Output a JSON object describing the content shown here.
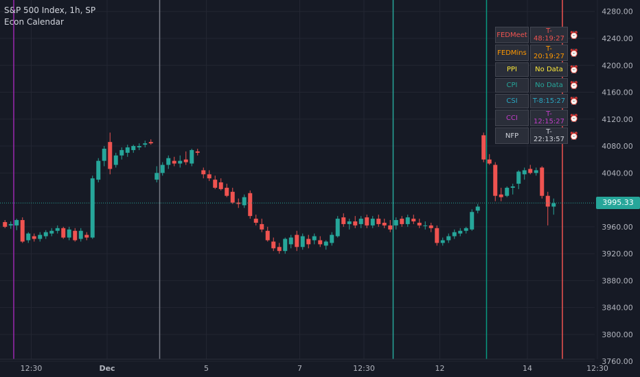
{
  "header": {
    "title": "S&P 500 Index, 1h, SP",
    "indicator": "Econ Calendar"
  },
  "price_badge": "3995.33",
  "colors": {
    "background": "#161a25",
    "up": "#26a69a",
    "down": "#ef5350",
    "grid": "#232632",
    "axis_text": "#b2b5be"
  },
  "calendar": {
    "rows": [
      {
        "event": "FEDMeet",
        "countdown": "T-48:19:27",
        "color": "#ef5350",
        "icon": "alarm-clock"
      },
      {
        "event": "FEDMins",
        "countdown": "T-20:19:27",
        "color": "#ff9800",
        "icon": "alarm-clock"
      },
      {
        "event": "PPI",
        "countdown": "No Data",
        "color": "#ffeb3b",
        "icon": "alarm-clock"
      },
      {
        "event": "CPI",
        "countdown": "No Data",
        "color": "#26a69a",
        "icon": "alarm-clock"
      },
      {
        "event": "CSI",
        "countdown": "T-8:15:27",
        "color": "#2aa8c4",
        "icon": "alarm-clock"
      },
      {
        "event": "CCI",
        "countdown": "T-12:15:27",
        "color": "#c13ec8",
        "icon": "alarm-clock"
      },
      {
        "event": "NFP",
        "countdown": "T-22:13:57",
        "color": "#d1d4dc",
        "icon": "alarm-clock"
      }
    ]
  },
  "chart_data": {
    "type": "candlestick",
    "y_ticks": [
      "4280.00",
      "4240.00",
      "4200.00",
      "4160.00",
      "4120.00",
      "4080.00",
      "4040.00",
      "3960.00",
      "3920.00",
      "3880.00",
      "3840.00",
      "3800.00",
      "3760.00"
    ],
    "y_range": [
      3750,
      4295
    ],
    "x_ticks": [
      "12:30",
      "Dec",
      "5",
      "7",
      "12:30",
      "12",
      "14",
      "12:30"
    ],
    "x_tick_index": [
      4.5,
      17.5,
      34.5,
      50.5,
      61.5,
      74.5,
      89.5,
      101.5
    ],
    "last_price": 3995.33,
    "event_lines": [
      {
        "index": 1.5,
        "color": "#9c27b0"
      },
      {
        "index": 26.5,
        "color": "#787b86"
      },
      {
        "index": 66.5,
        "color": "#26a69a"
      },
      {
        "index": 82.5,
        "color": "#089981"
      },
      {
        "index": 95.5,
        "color": "#ef5350"
      }
    ],
    "candles": [
      [
        3967,
        3970,
        3958,
        3960
      ],
      [
        3962,
        3968,
        3957,
        3964
      ],
      [
        3962,
        3972,
        3955,
        3970
      ],
      [
        3970,
        3974,
        3936,
        3938
      ],
      [
        3940,
        3952,
        3936,
        3950
      ],
      [
        3946,
        3950,
        3938,
        3942
      ],
      [
        3942,
        3952,
        3938,
        3948
      ],
      [
        3946,
        3955,
        3942,
        3952
      ],
      [
        3950,
        3958,
        3946,
        3954
      ],
      [
        3954,
        3962,
        3950,
        3958
      ],
      [
        3958,
        3960,
        3942,
        3944
      ],
      [
        3944,
        3960,
        3940,
        3956
      ],
      [
        3954,
        3958,
        3938,
        3940
      ],
      [
        3942,
        3958,
        3938,
        3954
      ],
      [
        3948,
        3952,
        3940,
        3944
      ],
      [
        3944,
        4036,
        3942,
        4032
      ],
      [
        4030,
        4062,
        4026,
        4058
      ],
      [
        4058,
        4080,
        4050,
        4076
      ],
      [
        4086,
        4100,
        4038,
        4046
      ],
      [
        4052,
        4070,
        4048,
        4066
      ],
      [
        4066,
        4078,
        4060,
        4074
      ],
      [
        4070,
        4082,
        4064,
        4078
      ],
      [
        4074,
        4082,
        4070,
        4080
      ],
      [
        4078,
        4084,
        4074,
        4080
      ],
      [
        4082,
        4088,
        4078,
        4084
      ],
      [
        4086,
        4090,
        4082,
        4084
      ],
      [
        4030,
        4050,
        4026,
        4040
      ],
      [
        4040,
        4056,
        4036,
        4052
      ],
      [
        4052,
        4066,
        4046,
        4062
      ],
      [
        4058,
        4064,
        4050,
        4054
      ],
      [
        4054,
        4066,
        4048,
        4058
      ],
      [
        4060,
        4072,
        4052,
        4056
      ],
      [
        4054,
        4076,
        4050,
        4074
      ],
      [
        4072,
        4076,
        4066,
        4070
      ],
      [
        4044,
        4048,
        4032,
        4038
      ],
      [
        4038,
        4044,
        4028,
        4032
      ],
      [
        4030,
        4036,
        4016,
        4018
      ],
      [
        4026,
        4032,
        4014,
        4016
      ],
      [
        4018,
        4024,
        4004,
        4006
      ],
      [
        4012,
        4018,
        3994,
        3996
      ],
      [
        3996,
        4002,
        3988,
        3994
      ],
      [
        3992,
        4008,
        3988,
        4004
      ],
      [
        4010,
        4014,
        3972,
        3976
      ],
      [
        3972,
        3978,
        3962,
        3966
      ],
      [
        3964,
        3972,
        3952,
        3956
      ],
      [
        3954,
        3960,
        3938,
        3940
      ],
      [
        3938,
        3944,
        3924,
        3928
      ],
      [
        3930,
        3936,
        3920,
        3924
      ],
      [
        3924,
        3944,
        3920,
        3942
      ],
      [
        3934,
        3948,
        3928,
        3944
      ],
      [
        3948,
        3954,
        3924,
        3930
      ],
      [
        3930,
        3950,
        3926,
        3946
      ],
      [
        3942,
        3948,
        3928,
        3934
      ],
      [
        3940,
        3950,
        3934,
        3946
      ],
      [
        3940,
        3946,
        3930,
        3934
      ],
      [
        3932,
        3940,
        3926,
        3938
      ],
      [
        3936,
        3952,
        3932,
        3948
      ],
      [
        3946,
        3976,
        3944,
        3972
      ],
      [
        3974,
        3980,
        3960,
        3964
      ],
      [
        3964,
        3972,
        3956,
        3968
      ],
      [
        3968,
        3976,
        3958,
        3962
      ],
      [
        3964,
        3976,
        3958,
        3972
      ],
      [
        3974,
        3978,
        3958,
        3962
      ],
      [
        3962,
        3976,
        3958,
        3972
      ],
      [
        3972,
        3978,
        3960,
        3964
      ],
      [
        3966,
        3972,
        3958,
        3962
      ],
      [
        3962,
        3970,
        3952,
        3956
      ],
      [
        3962,
        3974,
        3956,
        3970
      ],
      [
        3972,
        3976,
        3960,
        3964
      ],
      [
        3964,
        3978,
        3960,
        3974
      ],
      [
        3972,
        3978,
        3964,
        3968
      ],
      [
        3966,
        3972,
        3958,
        3962
      ],
      [
        3962,
        3968,
        3956,
        3962
      ],
      [
        3962,
        3966,
        3952,
        3958
      ],
      [
        3958,
        3962,
        3932,
        3936
      ],
      [
        3936,
        3944,
        3932,
        3940
      ],
      [
        3940,
        3950,
        3936,
        3946
      ],
      [
        3946,
        3956,
        3942,
        3952
      ],
      [
        3950,
        3958,
        3946,
        3954
      ],
      [
        3954,
        3960,
        3950,
        3958
      ],
      [
        3956,
        3986,
        3954,
        3982
      ],
      [
        3984,
        3994,
        3980,
        3990
      ],
      [
        4096,
        4100,
        4056,
        4060
      ],
      [
        4060,
        4068,
        4052,
        4054
      ],
      [
        4052,
        4056,
        3998,
        4006
      ],
      [
        4008,
        4018,
        3998,
        4004
      ],
      [
        4006,
        4020,
        4004,
        4018
      ],
      [
        4018,
        4024,
        4008,
        4020
      ],
      [
        4024,
        4044,
        4016,
        4042
      ],
      [
        4038,
        4048,
        4030,
        4044
      ],
      [
        4046,
        4052,
        4038,
        4040
      ],
      [
        4040,
        4048,
        4036,
        4044
      ],
      [
        4048,
        4050,
        4002,
        4006
      ],
      [
        4006,
        4012,
        3962,
        3990
      ],
      [
        3990,
        4002,
        3978,
        3995
      ]
    ]
  }
}
